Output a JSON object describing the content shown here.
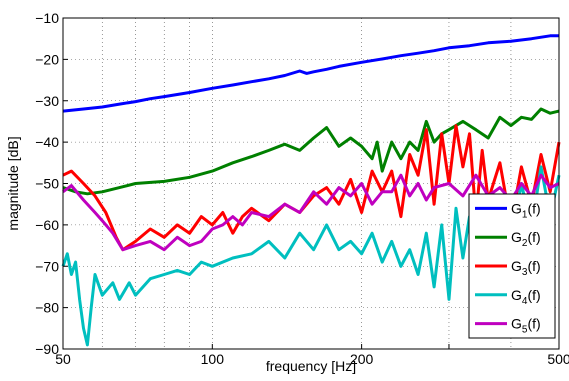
{
  "chart_data": {
    "type": "line",
    "xlabel": "frequency [Hz]",
    "ylabel": "magnitude [dB]",
    "xscale": "log",
    "xlim": [
      50,
      500
    ],
    "ylim": [
      -90,
      -10
    ],
    "x_ticks": [
      50,
      100,
      200,
      300,
      500
    ],
    "x_tick_labels": [
      "50",
      "100",
      "200",
      "",
      "500"
    ],
    "y_ticks": [
      -90,
      -80,
      -70,
      -60,
      -50,
      -40,
      -30,
      -20,
      -10
    ],
    "y_tick_labels": [
      "−90",
      "−80",
      "−70",
      "−60",
      "−50",
      "−40",
      "−30",
      "−20",
      "−10"
    ],
    "grid": true,
    "grid_style": "dotted",
    "legend_position": "lower-right",
    "series": [
      {
        "name": "G",
        "subscript": "1",
        "suffix": "(f)",
        "color": "#0000ff",
        "x": [
          50,
          55,
          60,
          65,
          70,
          75,
          80,
          90,
          100,
          110,
          120,
          130,
          140,
          150,
          155,
          160,
          170,
          180,
          200,
          220,
          240,
          260,
          280,
          300,
          330,
          360,
          400,
          440,
          480,
          500
        ],
        "y": [
          -32.5,
          -32,
          -31.5,
          -30.8,
          -30.2,
          -29.5,
          -29,
          -28,
          -27,
          -26.2,
          -25.4,
          -24.7,
          -23.9,
          -22.8,
          -23.4,
          -23,
          -22.4,
          -21.7,
          -20.7,
          -19.9,
          -19.1,
          -18.5,
          -17.9,
          -17.2,
          -16.7,
          -16,
          -15.6,
          -15,
          -14.3,
          -14.3
        ]
      },
      {
        "name": "G",
        "subscript": "2",
        "suffix": "(f)",
        "color": "#008000",
        "x": [
          50,
          53,
          56,
          60,
          65,
          70,
          80,
          90,
          100,
          110,
          120,
          130,
          140,
          150,
          160,
          170,
          180,
          190,
          200,
          210,
          215,
          220,
          230,
          240,
          250,
          260,
          270,
          280,
          290,
          300,
          320,
          340,
          360,
          380,
          400,
          420,
          440,
          460,
          480,
          500
        ],
        "y": [
          -51,
          -52,
          -52.5,
          -52,
          -51,
          -50,
          -49.5,
          -48.5,
          -47,
          -45,
          -43.5,
          -42,
          -40.5,
          -42,
          -39,
          -36.5,
          -41,
          -39,
          -41,
          -44,
          -40,
          -47,
          -40,
          -44,
          -40,
          -42,
          -35,
          -40,
          -38,
          -37,
          -35,
          -37,
          -39,
          -34,
          -36,
          -34,
          -34.5,
          -32,
          -33,
          -32.5
        ]
      },
      {
        "name": "G",
        "subscript": "3",
        "suffix": "(f)",
        "color": "#ff0000",
        "x": [
          50,
          52,
          55,
          58,
          61,
          64,
          66,
          70,
          75,
          80,
          85,
          90,
          95,
          100,
          105,
          110,
          115,
          120,
          130,
          140,
          150,
          160,
          170,
          180,
          190,
          200,
          210,
          220,
          230,
          240,
          250,
          260,
          270,
          280,
          290,
          300,
          310,
          320,
          330,
          340,
          350,
          360,
          380,
          400,
          420,
          440,
          460,
          480,
          500
        ],
        "y": [
          -48,
          -47,
          -50,
          -53,
          -57,
          -63,
          -66,
          -64,
          -61,
          -63,
          -60,
          -62,
          -58,
          -60,
          -57,
          -62,
          -58,
          -56,
          -59,
          -55,
          -57,
          -53,
          -51,
          -55,
          -49,
          -57,
          -47,
          -52,
          -47,
          -58,
          -43,
          -48,
          -37,
          -55,
          -38,
          -50,
          -36,
          -46,
          -38,
          -58,
          -42,
          -54,
          -45,
          -60,
          -46,
          -55,
          -43,
          -52,
          -40
        ]
      },
      {
        "name": "G",
        "subscript": "4",
        "suffix": "(f)",
        "color": "#00bfbf",
        "x": [
          50,
          51,
          52,
          53,
          54,
          55,
          56,
          57,
          58,
          60,
          63,
          65,
          68,
          70,
          75,
          80,
          85,
          90,
          95,
          100,
          110,
          120,
          130,
          140,
          150,
          160,
          170,
          180,
          190,
          200,
          210,
          220,
          230,
          240,
          250,
          260,
          270,
          280,
          290,
          300,
          310,
          320,
          330,
          340,
          350,
          360,
          380,
          400,
          420,
          440,
          460,
          480,
          500
        ],
        "y": [
          -70,
          -67,
          -72,
          -69,
          -78,
          -85,
          -89,
          -80,
          -72,
          -77,
          -74,
          -78,
          -74,
          -77,
          -73,
          -72,
          -71,
          -72,
          -69,
          -70,
          -68,
          -67,
          -64,
          -68,
          -62,
          -66,
          -60,
          -66,
          -64,
          -67,
          -62,
          -69,
          -64,
          -70,
          -66,
          -72,
          -62,
          -75,
          -60,
          -78,
          -56,
          -68,
          -58,
          -73,
          -55,
          -67,
          -56,
          -64,
          -50,
          -61,
          -46,
          -58,
          -48
        ]
      },
      {
        "name": "G",
        "subscript": "5",
        "suffix": "(f)",
        "color": "#bf00bf",
        "x": [
          50,
          52,
          55,
          58,
          60,
          63,
          66,
          70,
          75,
          80,
          85,
          90,
          95,
          100,
          105,
          110,
          115,
          120,
          130,
          140,
          150,
          160,
          170,
          180,
          190,
          200,
          210,
          220,
          230,
          240,
          250,
          260,
          270,
          280,
          300,
          320,
          340,
          360,
          380,
          400,
          420,
          440,
          460,
          480,
          500
        ],
        "y": [
          -52,
          -50.5,
          -54,
          -57,
          -59,
          -62,
          -66,
          -65,
          -64,
          -66,
          -63,
          -65,
          -64,
          -61,
          -60,
          -58,
          -60,
          -57,
          -58,
          -55,
          -57,
          -52,
          -55,
          -51,
          -53,
          -50,
          -55,
          -52,
          -52,
          -48,
          -53,
          -50,
          -54,
          -51,
          -50,
          -53,
          -48,
          -53,
          -51,
          -54,
          -50,
          -53,
          -48,
          -51,
          -50
        ]
      }
    ]
  }
}
